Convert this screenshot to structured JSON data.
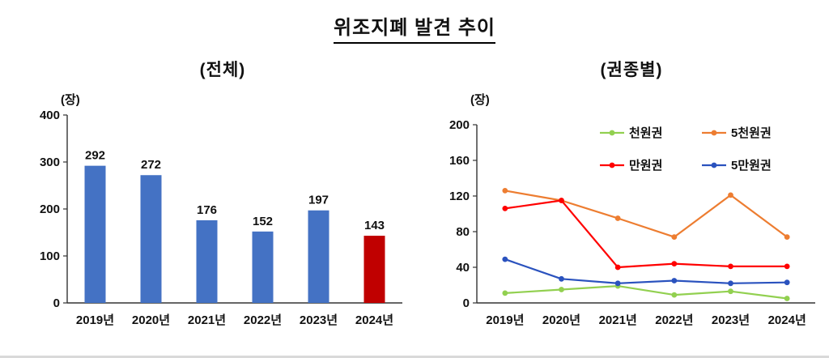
{
  "header": {
    "title": "위조지폐 발견 추이"
  },
  "chart_data": [
    {
      "type": "bar",
      "title": "(전체)",
      "unit": "(장)",
      "categories": [
        "2019년",
        "2020년",
        "2021년",
        "2022년",
        "2023년",
        "2024년"
      ],
      "values": [
        292,
        272,
        176,
        152,
        197,
        143
      ],
      "bar_colors": [
        "#4472C4",
        "#4472C4",
        "#4472C4",
        "#4472C4",
        "#4472C4",
        "#C00000"
      ],
      "ylim": [
        0,
        400
      ],
      "yticks": [
        0,
        100,
        200,
        300,
        400
      ],
      "grid": false,
      "value_labels": true
    },
    {
      "type": "line",
      "title": "(권종별)",
      "unit": "(장)",
      "categories": [
        "2019년",
        "2020년",
        "2021년",
        "2022년",
        "2023년",
        "2024년"
      ],
      "series": [
        {
          "name": "천원권",
          "color": "#92D050",
          "values": [
            11,
            15,
            19,
            9,
            13,
            5
          ]
        },
        {
          "name": "5천원권",
          "color": "#ED7D31",
          "values": [
            126,
            115,
            95,
            74,
            121,
            74
          ]
        },
        {
          "name": "만원권",
          "color": "#FF0000",
          "values": [
            106,
            115,
            40,
            44,
            41,
            41
          ]
        },
        {
          "name": "5만원권",
          "color": "#2A52BE",
          "values": [
            49,
            27,
            22,
            25,
            22,
            23
          ]
        }
      ],
      "ylim": [
        0,
        200
      ],
      "yticks": [
        0,
        40,
        80,
        120,
        160,
        200
      ],
      "grid": false,
      "legend_rows": [
        [
          "천원권",
          "5천원권"
        ],
        [
          "만원권",
          "5만원권"
        ]
      ],
      "legend_position": "top-right-inside"
    }
  ]
}
